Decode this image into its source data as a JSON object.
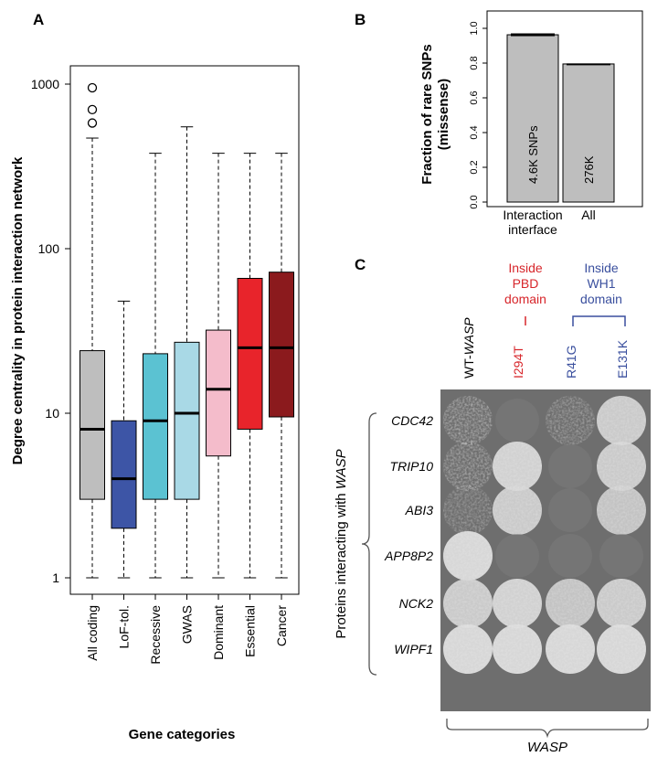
{
  "panels": {
    "a": {
      "letter": "A",
      "chart_data": {
        "type": "box",
        "ylabel": "Degree centrality in protein interaction network",
        "xlabel": "Gene categories",
        "yscale": "log",
        "ylim": [
          1,
          1200
        ],
        "y_ticks": [
          1,
          10,
          100,
          1000
        ],
        "y_tick_labels": [
          "1",
          "10",
          "100",
          "1000"
        ],
        "categories": [
          "All coding",
          "LoF-tol.",
          "Recessive",
          "GWAS",
          "Dominant",
          "Essential",
          "Cancer"
        ],
        "colors": [
          "#bebebe",
          "#3d55a6",
          "#5bc2d2",
          "#a9d9e6",
          "#f4bccb",
          "#e8242b",
          "#8b1a1d"
        ],
        "boxes": [
          {
            "whisker_low": 1,
            "q1": 3,
            "median": 8,
            "q3": 24,
            "whisker_high": 470,
            "outliers": [
              580,
              700,
              950
            ]
          },
          {
            "whisker_low": 1,
            "q1": 2,
            "median": 4,
            "q3": 9,
            "whisker_high": 48,
            "outliers": []
          },
          {
            "whisker_low": 1,
            "q1": 3,
            "median": 9,
            "q3": 23,
            "whisker_high": 380,
            "outliers": []
          },
          {
            "whisker_low": 1,
            "q1": 3,
            "median": 10,
            "q3": 27,
            "whisker_high": 550,
            "outliers": []
          },
          {
            "whisker_low": 1,
            "q1": 5.5,
            "median": 14,
            "q3": 32,
            "whisker_high": 380,
            "outliers": []
          },
          {
            "whisker_low": 1,
            "q1": 8,
            "median": 25,
            "q3": 66,
            "whisker_high": 380,
            "outliers": []
          },
          {
            "whisker_low": 1,
            "q1": 9.5,
            "median": 25,
            "q3": 72,
            "whisker_high": 380,
            "outliers": []
          }
        ]
      }
    },
    "b": {
      "letter": "B",
      "chart_data": {
        "type": "bar",
        "ylabel_line1": "Fraction of rare SNPs",
        "ylabel_line2": "(missense)",
        "ylim": [
          0,
          1.0
        ],
        "y_ticks": [
          0.0,
          0.2,
          0.4,
          0.6,
          0.8,
          1.0
        ],
        "y_tick_labels": [
          "0.0",
          "0.2",
          "0.4",
          "0.6",
          "0.8",
          "1.0"
        ],
        "categories": [
          [
            "Interaction",
            "interface"
          ],
          [
            "All"
          ]
        ],
        "values": [
          0.963,
          0.795
        ],
        "errors": [
          0.008,
          0.003
        ],
        "bar_labels": [
          "4.6K SNPs",
          "276K"
        ],
        "bar_color": "#bebebe"
      }
    },
    "c": {
      "letter": "C",
      "annotations": {
        "pbd": [
          "Inside",
          "PBD",
          "domain"
        ],
        "wh1": [
          "Inside",
          "WH1",
          "domain"
        ],
        "pbd_color": "#d7262b",
        "wh1_color": "#3a4f9e"
      },
      "columns": [
        {
          "prefix": "WT-",
          "name": "WASP",
          "color": "#000000"
        },
        {
          "prefix": "",
          "name": "I294T",
          "color": "#d7262b"
        },
        {
          "prefix": "",
          "name": "R41G",
          "color": "#3a4f9e"
        },
        {
          "prefix": "",
          "name": "E131K",
          "color": "#3a4f9e"
        }
      ],
      "rows": [
        "CDC42",
        "TRIP10",
        "ABI3",
        "APP8P2",
        "NCK2",
        "WIPF1"
      ],
      "row_axis_label_prefix": "Proteins interacting with ",
      "row_axis_label_gene": "WASP",
      "bottom_label": "WASP",
      "growth": [
        [
          0.75,
          0.15,
          0.6,
          0.9
        ],
        [
          0.7,
          0.95,
          0.05,
          0.9
        ],
        [
          0.55,
          0.9,
          0.15,
          0.85
        ],
        [
          1.0,
          0.05,
          0.05,
          0.1
        ],
        [
          0.9,
          0.95,
          0.85,
          0.9
        ],
        [
          1.0,
          1.0,
          1.0,
          1.0
        ]
      ]
    }
  }
}
